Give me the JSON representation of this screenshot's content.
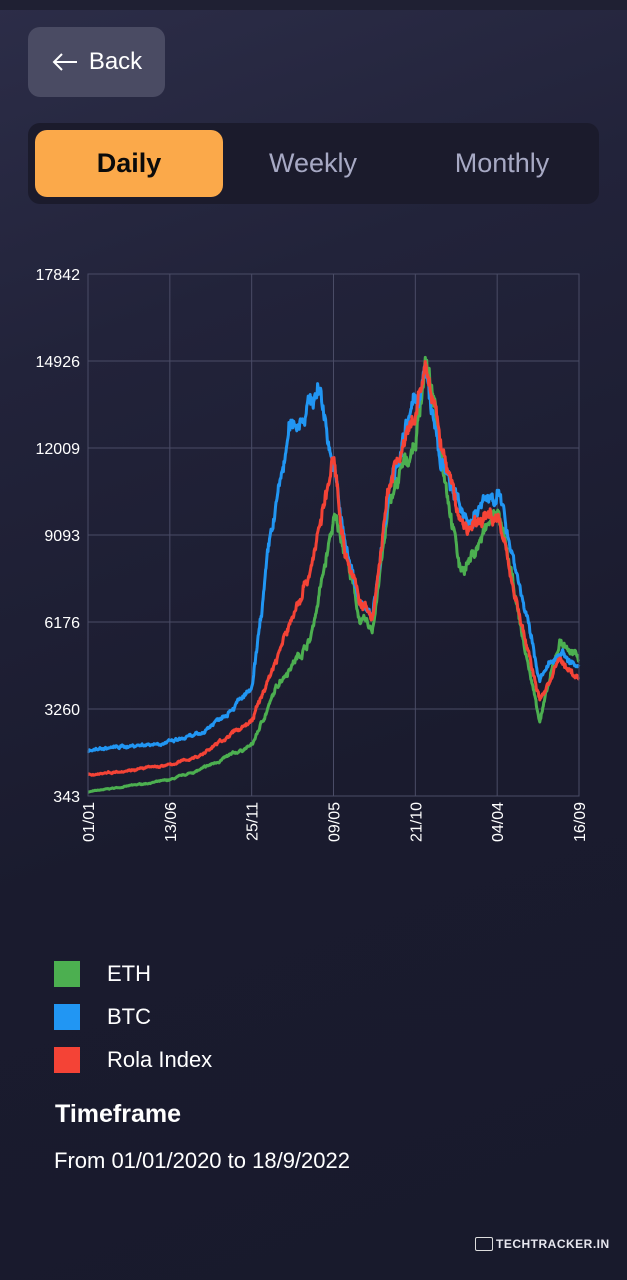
{
  "back_label": "Back",
  "tabs": [
    {
      "label": "Daily",
      "active": true
    },
    {
      "label": "Weekly",
      "active": false
    },
    {
      "label": "Monthly",
      "active": false
    }
  ],
  "colors": {
    "accent": "#fba94a",
    "eth": "#4caf50",
    "btc": "#2196f3",
    "rola": "#f44336"
  },
  "chart_data": {
    "type": "line",
    "title": "",
    "xlabel": "",
    "ylabel": "",
    "x_unit": "days since 01/01/2020",
    "xlim": [
      0,
      990
    ],
    "ylim": [
      343,
      17842
    ],
    "yticks": [
      343,
      3260,
      6176,
      9093,
      12009,
      14926,
      17842
    ],
    "xticks": [
      {
        "x": 0,
        "label": "01/01"
      },
      {
        "x": 165,
        "label": "13/06"
      },
      {
        "x": 330,
        "label": "25/11"
      },
      {
        "x": 495,
        "label": "09/05"
      },
      {
        "x": 660,
        "label": "21/10"
      },
      {
        "x": 825,
        "label": "04/04"
      },
      {
        "x": 990,
        "label": "16/09"
      }
    ],
    "grid": true,
    "series": [
      {
        "name": "ETH",
        "color": "#4caf50",
        "points": [
          [
            0,
            480
          ],
          [
            165,
            880
          ],
          [
            226,
            1220
          ],
          [
            331,
            2050
          ],
          [
            387,
            4230
          ],
          [
            448,
            5570
          ],
          [
            496,
            9600
          ],
          [
            518,
            8750
          ],
          [
            548,
            6240
          ],
          [
            573,
            5900
          ],
          [
            609,
            10270
          ],
          [
            661,
            12280
          ],
          [
            680,
            14950
          ],
          [
            710,
            12280
          ],
          [
            750,
            7920
          ],
          [
            770,
            8260
          ],
          [
            825,
            9930
          ],
          [
            851,
            7920
          ],
          [
            881,
            5240
          ],
          [
            911,
            2900
          ],
          [
            952,
            5570
          ],
          [
            990,
            4900
          ]
        ]
      },
      {
        "name": "BTC",
        "color": "#2196f3",
        "points": [
          [
            0,
            1885
          ],
          [
            165,
            2150
          ],
          [
            226,
            2400
          ],
          [
            331,
            3900
          ],
          [
            367,
            8900
          ],
          [
            407,
            12600
          ],
          [
            468,
            14000
          ],
          [
            496,
            11270
          ],
          [
            518,
            8750
          ],
          [
            548,
            6900
          ],
          [
            573,
            6240
          ],
          [
            609,
            10930
          ],
          [
            661,
            13600
          ],
          [
            680,
            14450
          ],
          [
            710,
            11600
          ],
          [
            750,
            9930
          ],
          [
            770,
            9600
          ],
          [
            825,
            10600
          ],
          [
            851,
            8900
          ],
          [
            881,
            6575
          ],
          [
            911,
            4230
          ],
          [
            952,
            5240
          ],
          [
            990,
            4570
          ]
        ]
      },
      {
        "name": "Rola Index",
        "color": "#f44336",
        "points": [
          [
            0,
            1050
          ],
          [
            165,
            1380
          ],
          [
            226,
            1700
          ],
          [
            331,
            2890
          ],
          [
            387,
            5240
          ],
          [
            448,
            7920
          ],
          [
            496,
            11600
          ],
          [
            518,
            8590
          ],
          [
            548,
            6900
          ],
          [
            573,
            6240
          ],
          [
            609,
            10930
          ],
          [
            661,
            12950
          ],
          [
            680,
            14800
          ],
          [
            710,
            12280
          ],
          [
            750,
            9600
          ],
          [
            770,
            9260
          ],
          [
            825,
            9930
          ],
          [
            851,
            7920
          ],
          [
            881,
            5570
          ],
          [
            911,
            3560
          ],
          [
            952,
            4900
          ],
          [
            990,
            4230
          ]
        ]
      }
    ]
  },
  "legend": [
    {
      "label": "ETH",
      "color": "#4caf50"
    },
    {
      "label": "BTC",
      "color": "#2196f3"
    },
    {
      "label": "Rola Index",
      "color": "#f44336"
    }
  ],
  "timeframe": {
    "heading": "Timeframe",
    "text": "From 01/01/2020 to 18/9/2022"
  },
  "watermark": "TechTracker.in"
}
